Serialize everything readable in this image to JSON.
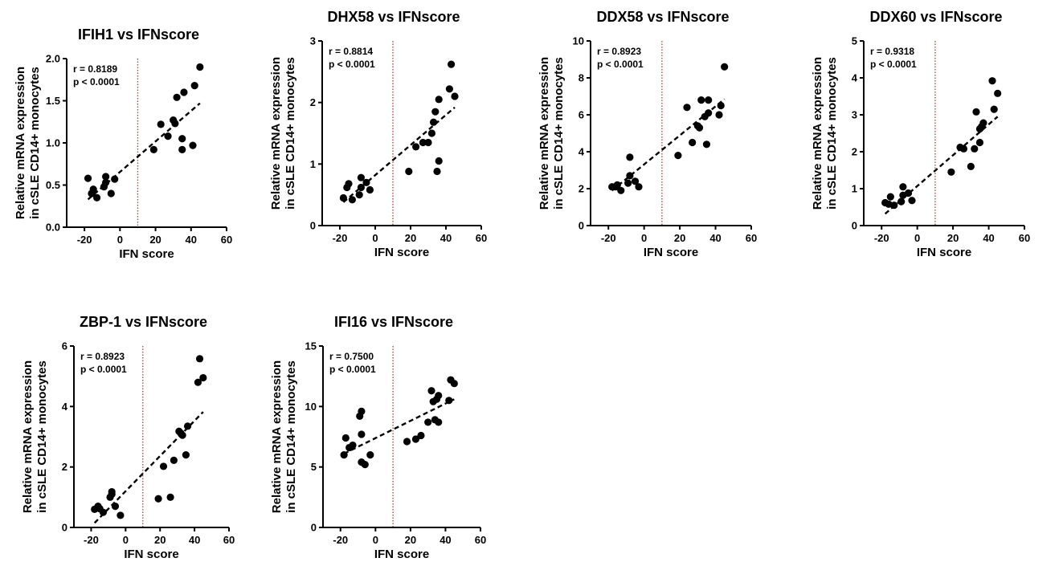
{
  "figure": {
    "ylabel_line1": "Relative mRNA expression",
    "ylabel_line2": "in cSLE CD14+ monocytes",
    "xlabel": "IFN score"
  },
  "chart_data": [
    {
      "type": "scatter",
      "title": "IFIH1 vs IFNscore",
      "xlabel": "IFN score",
      "ylabel": "Relative mRNA expression in cSLE CD14+ monocytes",
      "r_text": "r = 0.8189",
      "p_text": "p < 0.0001",
      "xlim": [
        -30,
        60
      ],
      "ylim": [
        0,
        2.0
      ],
      "xticks": [
        -20,
        0,
        20,
        40,
        60
      ],
      "yticks": [
        0,
        0.5,
        1.0,
        1.5,
        2.0
      ],
      "ytick_labels": [
        "0.0",
        "0.5",
        "1.0",
        "1.5",
        "2.0"
      ],
      "threshold_x": 10,
      "fit_line": {
        "x": [
          -18,
          45
        ],
        "y": [
          0.33,
          1.47
        ]
      },
      "points": {
        "x": [
          -18,
          -16,
          -15,
          -13,
          -9,
          -8,
          -8,
          -5,
          -3,
          19,
          23,
          27,
          30,
          31,
          32,
          35,
          35,
          36,
          41,
          42,
          45
        ],
        "y": [
          0.58,
          0.4,
          0.45,
          0.35,
          0.48,
          0.53,
          0.6,
          0.4,
          0.57,
          0.92,
          1.22,
          1.08,
          1.27,
          1.23,
          1.54,
          1.05,
          0.92,
          1.6,
          0.97,
          1.68,
          1.9
        ]
      }
    },
    {
      "type": "scatter",
      "title": "DHX58 vs IFNscore",
      "xlabel": "IFN score",
      "ylabel": "Relative mRNA expression in cSLE CD14+ monocytes",
      "r_text": "r = 0.8814",
      "p_text": "p < 0.0001",
      "xlim": [
        -30,
        60
      ],
      "ylim": [
        0,
        3
      ],
      "xticks": [
        -20,
        0,
        20,
        40,
        60
      ],
      "yticks": [
        0,
        1,
        2,
        3
      ],
      "ytick_labels": [
        "0",
        "1",
        "2",
        "3"
      ],
      "threshold_x": 10,
      "fit_line": {
        "x": [
          -18,
          45
        ],
        "y": [
          0.38,
          1.92
        ]
      },
      "points": {
        "x": [
          -18,
          -16,
          -15,
          -13,
          -9,
          -8,
          -8,
          -5,
          -3,
          19,
          23,
          27,
          30,
          32,
          33,
          34,
          35,
          36,
          36,
          42,
          43,
          45
        ],
        "y": [
          0.45,
          0.62,
          0.68,
          0.42,
          0.5,
          0.62,
          0.78,
          0.7,
          0.58,
          0.88,
          1.28,
          1.35,
          1.35,
          1.5,
          1.68,
          1.85,
          0.88,
          1.05,
          2.05,
          2.22,
          2.62,
          2.1
        ]
      }
    },
    {
      "type": "scatter",
      "title": "DDX58 vs IFNscore",
      "xlabel": "IFN score",
      "ylabel": "Relative mRNA expression in cSLE CD14+ monocytes",
      "r_text": "r = 0.8923",
      "p_text": "p < 0.0001",
      "xlim": [
        -30,
        60
      ],
      "ylim": [
        0,
        10
      ],
      "xticks": [
        -20,
        0,
        20,
        40,
        60
      ],
      "yticks": [
        0,
        2,
        4,
        6,
        8,
        10
      ],
      "ytick_labels": [
        "0",
        "2",
        "4",
        "6",
        "8",
        "10"
      ],
      "threshold_x": 10,
      "fit_line": {
        "x": [
          -18,
          45
        ],
        "y": [
          1.9,
          6.85
        ]
      },
      "points": {
        "x": [
          -18,
          -16,
          -15,
          -13,
          -9,
          -8,
          -8,
          -5,
          -3,
          19,
          24,
          27,
          30,
          31,
          32,
          34,
          35,
          36,
          36,
          42,
          43,
          45
        ],
        "y": [
          2.1,
          2.1,
          2.2,
          1.9,
          2.3,
          2.7,
          3.7,
          2.4,
          2.1,
          3.8,
          6.4,
          4.5,
          5.4,
          5.3,
          6.8,
          5.9,
          4.4,
          6.8,
          6.1,
          6.0,
          6.5,
          8.6
        ]
      }
    },
    {
      "type": "scatter",
      "title": "DDX60 vs IFNscore",
      "xlabel": "IFN score",
      "ylabel": "Relative mRNA expression in cSLE CD14+ monocytes",
      "r_text": "r = 0.9318",
      "p_text": "p < 0.0001",
      "xlim": [
        -30,
        60
      ],
      "ylim": [
        0,
        5
      ],
      "xticks": [
        -20,
        0,
        20,
        40,
        60
      ],
      "yticks": [
        0,
        1,
        2,
        3,
        4,
        5
      ],
      "ytick_labels": [
        "0",
        "1",
        "2",
        "3",
        "4",
        "5"
      ],
      "threshold_x": 10,
      "fit_line": {
        "x": [
          -18,
          45
        ],
        "y": [
          0.32,
          2.95
        ]
      },
      "points": {
        "x": [
          -18,
          -16,
          -15,
          -13,
          -9,
          -8,
          -8,
          -5,
          -3,
          19,
          24,
          26,
          30,
          32,
          33,
          35,
          35,
          36,
          37,
          42,
          43,
          45
        ],
        "y": [
          0.62,
          0.58,
          0.78,
          0.55,
          0.65,
          0.82,
          1.05,
          0.88,
          0.68,
          1.45,
          2.12,
          2.08,
          1.6,
          2.08,
          3.08,
          2.25,
          2.62,
          2.68,
          2.78,
          3.92,
          3.15,
          3.58
        ]
      }
    },
    {
      "type": "scatter",
      "title": "ZBP-1 vs IFNscore",
      "xlabel": "IFN score",
      "ylabel": "Relative mRNA expression in cSLE CD14+ monocytes",
      "r_text": "r = 0.8923",
      "p_text": "p < 0.0001",
      "xlim": [
        -30,
        60
      ],
      "ylim": [
        0,
        6
      ],
      "xticks": [
        -20,
        0,
        20,
        40,
        60
      ],
      "yticks": [
        0,
        2,
        4,
        6
      ],
      "ytick_labels": [
        "0",
        "2",
        "4",
        "6"
      ],
      "threshold_x": 10,
      "fit_line": {
        "x": [
          -18,
          45
        ],
        "y": [
          0.15,
          3.82
        ]
      },
      "points": {
        "x": [
          -18,
          -16,
          -15,
          -13,
          -9,
          -8,
          -8,
          -6,
          -3,
          19,
          22,
          26,
          28,
          31,
          32,
          33,
          35,
          36,
          42,
          43,
          45
        ],
        "y": [
          0.6,
          0.7,
          0.62,
          0.5,
          1.0,
          1.18,
          1.1,
          0.7,
          0.4,
          0.95,
          2.02,
          1.0,
          2.22,
          3.18,
          3.12,
          3.05,
          2.4,
          3.35,
          4.8,
          5.58,
          4.95
        ]
      }
    },
    {
      "type": "scatter",
      "title": "IFI16 vs IFNscore",
      "xlabel": "IFN score",
      "ylabel": "Relative mRNA expression in cSLE CD14+ monocytes",
      "r_text": "r = 0.7500",
      "p_text": "p < 0.0001",
      "xlim": [
        -30,
        60
      ],
      "ylim": [
        0,
        15
      ],
      "xticks": [
        -20,
        0,
        20,
        40,
        60
      ],
      "yticks": [
        0,
        5,
        10,
        15
      ],
      "ytick_labels": [
        "0",
        "5",
        "10",
        "15"
      ],
      "threshold_x": 10,
      "fit_line": {
        "x": [
          -18,
          45
        ],
        "y": [
          6.1,
          10.6
        ]
      },
      "points": {
        "x": [
          -18,
          -17,
          -15,
          -13,
          -9,
          -8,
          -8,
          -8,
          -6,
          -3,
          18,
          23,
          26,
          30,
          32,
          33,
          34,
          35,
          36,
          36,
          42,
          43,
          45
        ],
        "y": [
          6.0,
          7.4,
          6.6,
          6.8,
          9.2,
          9.6,
          7.7,
          5.4,
          5.2,
          6.0,
          7.1,
          7.3,
          7.6,
          8.7,
          11.3,
          10.4,
          8.9,
          10.6,
          8.7,
          10.9,
          10.5,
          12.2,
          11.9
        ]
      }
    }
  ]
}
